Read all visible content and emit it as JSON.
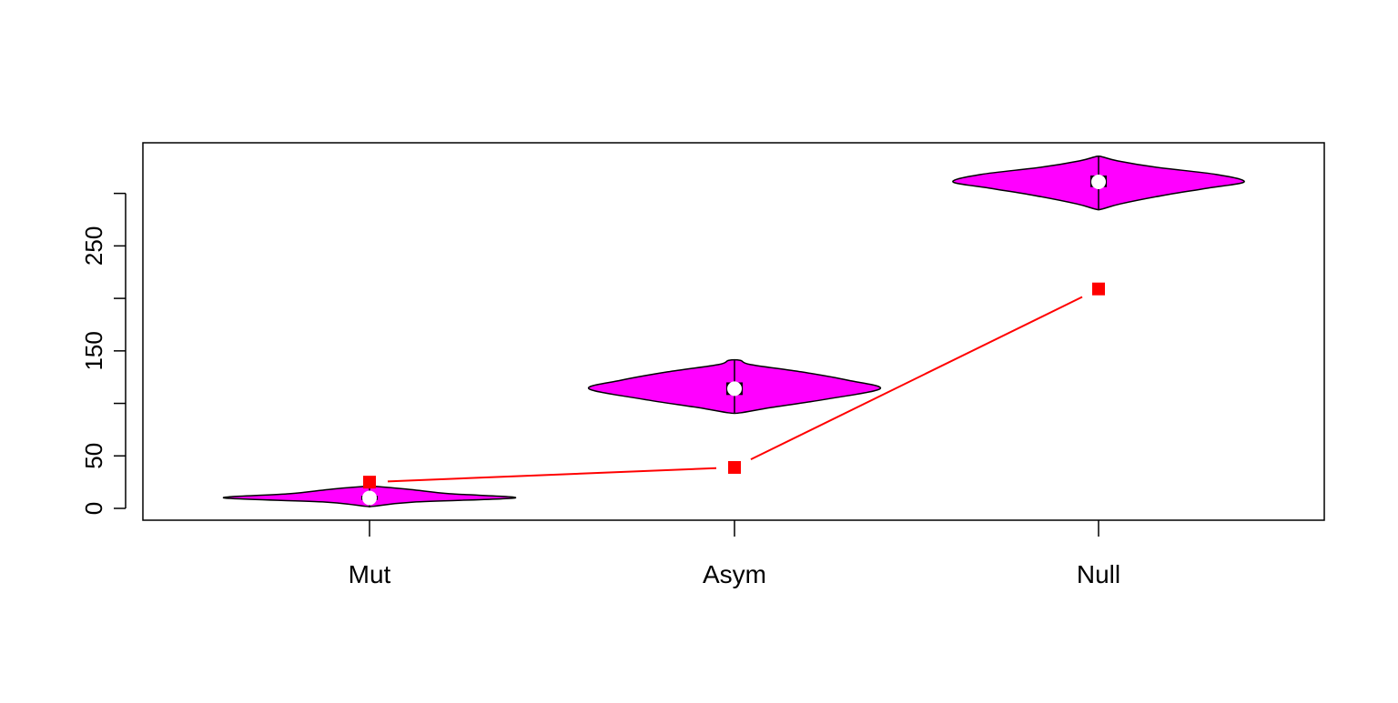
{
  "chart_data": {
    "type": "violin",
    "title": "",
    "xlabel": "",
    "ylabel": "",
    "categories": [
      "Mut",
      "Asym",
      "Null"
    ],
    "ylim": [
      -20,
      340
    ],
    "yticks": [
      0,
      50,
      100,
      150,
      200,
      250,
      300
    ],
    "ytick_labels_shown": [
      "0",
      "50",
      "",
      "150",
      "",
      "250",
      ""
    ],
    "violins": [
      {
        "name": "Mut",
        "median": 10,
        "q1": 8,
        "q3": 12,
        "min": 2,
        "max": 21,
        "density": [
          [
            2,
            0.03
          ],
          [
            6,
            0.3
          ],
          [
            10,
            1.0
          ],
          [
            14,
            0.55
          ],
          [
            18,
            0.28
          ],
          [
            21,
            0.03
          ]
        ]
      },
      {
        "name": "Asym",
        "median": 114,
        "q1": 108,
        "q3": 120,
        "min": 91,
        "max": 141,
        "density": [
          [
            91,
            0.04
          ],
          [
            96,
            0.25
          ],
          [
            104,
            0.63
          ],
          [
            114,
            1.0
          ],
          [
            122,
            0.78
          ],
          [
            130,
            0.46
          ],
          [
            137,
            0.11
          ],
          [
            141,
            0.04
          ]
        ]
      },
      {
        "name": "Null",
        "median": 311,
        "q1": 306,
        "q3": 317,
        "min": 285,
        "max": 335,
        "density": [
          [
            285,
            0.02
          ],
          [
            290,
            0.15
          ],
          [
            298,
            0.44
          ],
          [
            305,
            0.75
          ],
          [
            311,
            1.0
          ],
          [
            318,
            0.81
          ],
          [
            325,
            0.39
          ],
          [
            331,
            0.13
          ],
          [
            335,
            0.02
          ]
        ]
      }
    ],
    "overlay_series": {
      "values": [
        25,
        39,
        209
      ],
      "color": "#ff0000",
      "marker": "square"
    },
    "violin_fill": "#ff00ff",
    "grid": false,
    "legend": "none"
  }
}
